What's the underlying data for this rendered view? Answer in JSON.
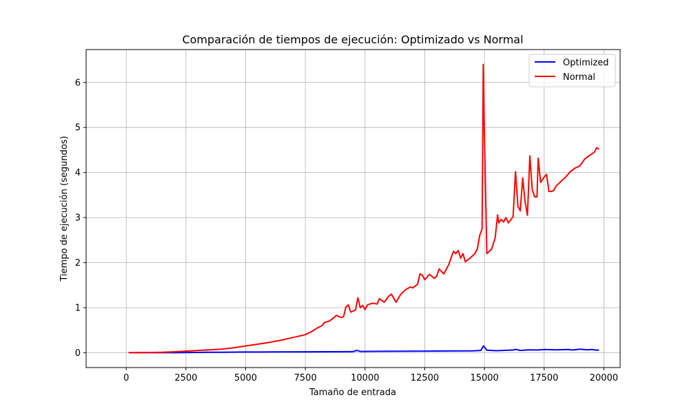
{
  "chart_data": {
    "type": "line",
    "title": "Comparación de tiempos de ejecución: Optimizado vs Normal",
    "xlabel": "Tamaño de entrada",
    "ylabel": "Tiempo de ejecución (segundos)",
    "xlim": [
      -1680,
      20680
    ],
    "ylim": [
      -0.33,
      6.73
    ],
    "xticks": [
      0,
      2500,
      5000,
      7500,
      10000,
      12500,
      15000,
      17500,
      20000
    ],
    "yticks": [
      0,
      1,
      2,
      3,
      4,
      5,
      6
    ],
    "grid": true,
    "legend_position": "top-right",
    "series": [
      {
        "name": "Optimized",
        "color": "#0000ff",
        "points": [
          [
            100,
            0.0
          ],
          [
            2000,
            0.0
          ],
          [
            3500,
            0.01
          ],
          [
            4000,
            0.01
          ],
          [
            5000,
            0.015
          ],
          [
            6000,
            0.017
          ],
          [
            7500,
            0.02
          ],
          [
            8500,
            0.022
          ],
          [
            9500,
            0.025
          ],
          [
            9650,
            0.05
          ],
          [
            9800,
            0.028
          ],
          [
            10500,
            0.03
          ],
          [
            11500,
            0.032
          ],
          [
            12500,
            0.035
          ],
          [
            13500,
            0.038
          ],
          [
            14500,
            0.04
          ],
          [
            14850,
            0.05
          ],
          [
            14960,
            0.15
          ],
          [
            15100,
            0.055
          ],
          [
            15500,
            0.045
          ],
          [
            16200,
            0.06
          ],
          [
            16300,
            0.075
          ],
          [
            16500,
            0.05
          ],
          [
            16900,
            0.065
          ],
          [
            17200,
            0.06
          ],
          [
            17500,
            0.07
          ],
          [
            18000,
            0.065
          ],
          [
            18500,
            0.07
          ],
          [
            18700,
            0.06
          ],
          [
            19000,
            0.08
          ],
          [
            19300,
            0.065
          ],
          [
            19500,
            0.07
          ],
          [
            19700,
            0.055
          ],
          [
            19800,
            0.06
          ]
        ]
      },
      {
        "name": "Normal",
        "color": "#ff0000",
        "points": [
          [
            100,
            0.0
          ],
          [
            1000,
            0.005
          ],
          [
            1500,
            0.01
          ],
          [
            2000,
            0.02
          ],
          [
            2500,
            0.035
          ],
          [
            3000,
            0.05
          ],
          [
            3500,
            0.065
          ],
          [
            4000,
            0.08
          ],
          [
            4500,
            0.11
          ],
          [
            5000,
            0.15
          ],
          [
            5500,
            0.19
          ],
          [
            6000,
            0.23
          ],
          [
            6500,
            0.28
          ],
          [
            7000,
            0.34
          ],
          [
            7500,
            0.4
          ],
          [
            7800,
            0.48
          ],
          [
            8000,
            0.55
          ],
          [
            8200,
            0.6
          ],
          [
            8300,
            0.67
          ],
          [
            8500,
            0.7
          ],
          [
            8700,
            0.78
          ],
          [
            8800,
            0.83
          ],
          [
            9000,
            0.78
          ],
          [
            9100,
            0.8
          ],
          [
            9200,
            1.02
          ],
          [
            9300,
            1.06
          ],
          [
            9400,
            0.9
          ],
          [
            9600,
            0.95
          ],
          [
            9700,
            1.22
          ],
          [
            9800,
            1.0
          ],
          [
            9900,
            1.05
          ],
          [
            10000,
            0.96
          ],
          [
            10100,
            1.06
          ],
          [
            10300,
            1.1
          ],
          [
            10500,
            1.08
          ],
          [
            10600,
            1.2
          ],
          [
            10800,
            1.12
          ],
          [
            11000,
            1.26
          ],
          [
            11100,
            1.3
          ],
          [
            11300,
            1.12
          ],
          [
            11500,
            1.3
          ],
          [
            11700,
            1.4
          ],
          [
            11900,
            1.46
          ],
          [
            12000,
            1.44
          ],
          [
            12200,
            1.52
          ],
          [
            12300,
            1.75
          ],
          [
            12400,
            1.72
          ],
          [
            12500,
            1.62
          ],
          [
            12700,
            1.74
          ],
          [
            12900,
            1.65
          ],
          [
            13000,
            1.7
          ],
          [
            13100,
            1.86
          ],
          [
            13300,
            1.75
          ],
          [
            13500,
            1.95
          ],
          [
            13700,
            2.25
          ],
          [
            13800,
            2.2
          ],
          [
            13900,
            2.27
          ],
          [
            14000,
            2.1
          ],
          [
            14100,
            2.2
          ],
          [
            14200,
            2.02
          ],
          [
            14400,
            2.1
          ],
          [
            14600,
            2.2
          ],
          [
            14700,
            2.3
          ],
          [
            14800,
            2.6
          ],
          [
            14900,
            2.75
          ],
          [
            14950,
            6.4
          ],
          [
            15000,
            4.8
          ],
          [
            15100,
            2.2
          ],
          [
            15300,
            2.3
          ],
          [
            15450,
            2.55
          ],
          [
            15550,
            3.06
          ],
          [
            15600,
            2.88
          ],
          [
            15700,
            2.96
          ],
          [
            15800,
            2.9
          ],
          [
            15900,
            3.0
          ],
          [
            16000,
            2.88
          ],
          [
            16200,
            3.02
          ],
          [
            16300,
            4.02
          ],
          [
            16400,
            3.25
          ],
          [
            16500,
            3.15
          ],
          [
            16600,
            3.88
          ],
          [
            16700,
            3.35
          ],
          [
            16800,
            3.05
          ],
          [
            16900,
            4.37
          ],
          [
            17000,
            3.62
          ],
          [
            17100,
            3.46
          ],
          [
            17200,
            3.46
          ],
          [
            17250,
            4.32
          ],
          [
            17350,
            3.78
          ],
          [
            17500,
            3.9
          ],
          [
            17600,
            3.96
          ],
          [
            17700,
            3.58
          ],
          [
            17800,
            3.58
          ],
          [
            17900,
            3.6
          ],
          [
            18000,
            3.7
          ],
          [
            18200,
            3.8
          ],
          [
            18400,
            3.9
          ],
          [
            18600,
            4.02
          ],
          [
            18800,
            4.1
          ],
          [
            19000,
            4.15
          ],
          [
            19200,
            4.3
          ],
          [
            19400,
            4.38
          ],
          [
            19600,
            4.45
          ],
          [
            19700,
            4.55
          ],
          [
            19800,
            4.52
          ]
        ]
      }
    ]
  }
}
